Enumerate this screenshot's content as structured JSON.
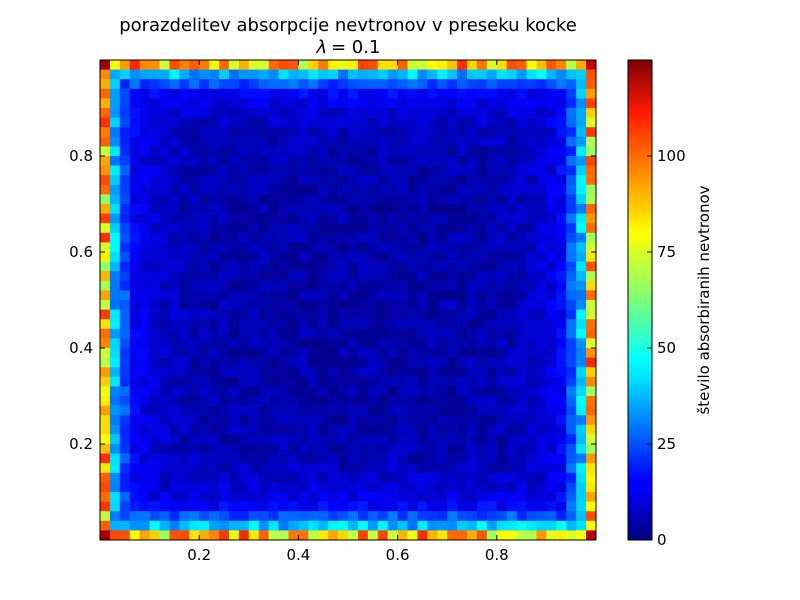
{
  "chart_data": {
    "type": "heatmap",
    "title": "porazdelitev absorpcije nevtronov v preseku kocke",
    "subtitle": {
      "symbol": "λ",
      "text": "= 0.1"
    },
    "x_ticks": [
      "0.2",
      "0.4",
      "0.6",
      "0.8"
    ],
    "x_tick_values": [
      0.2,
      0.4,
      0.6,
      0.8
    ],
    "y_ticks": [
      "0.2",
      "0.4",
      "0.6",
      "0.8"
    ],
    "y_tick_values": [
      0.2,
      0.4,
      0.6,
      0.8
    ],
    "xlim": [
      0,
      1
    ],
    "ylim": [
      0,
      1
    ],
    "grid": {
      "nx": 50,
      "ny": 50
    },
    "colormap": "jet",
    "colorbar": {
      "label": "število absorbiranih nevtronov",
      "range": [
        0,
        125
      ],
      "ticks": [
        "0",
        "25",
        "50",
        "75",
        "100"
      ],
      "tick_values": [
        0,
        25,
        50,
        75,
        100
      ]
    },
    "profile": {
      "interior": 5,
      "ring2": 25,
      "ring1": 38,
      "edge": 85,
      "corner": 120
    }
  }
}
